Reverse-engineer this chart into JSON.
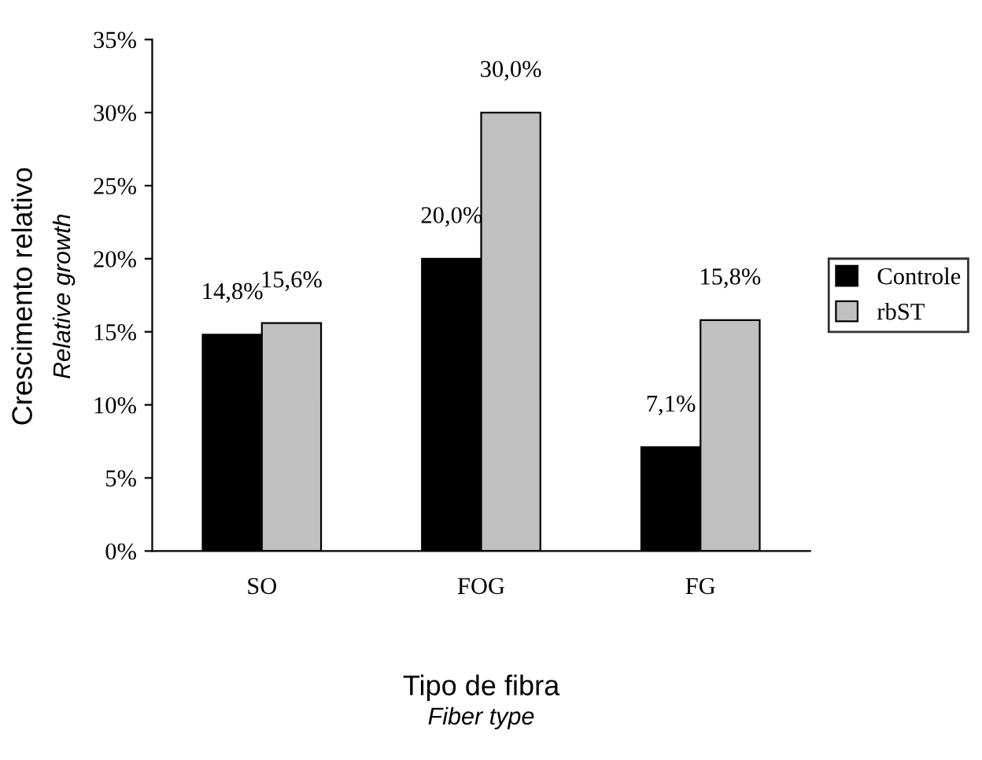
{
  "chart_data": {
    "type": "bar",
    "categories": [
      "SO",
      "FOG",
      "FG"
    ],
    "series": [
      {
        "name": "Controle",
        "color": "#000000",
        "values": [
          14.8,
          20.0,
          7.1
        ],
        "value_labels": [
          "14,8%",
          "20,0%",
          "7,1%"
        ]
      },
      {
        "name": "rbST",
        "color": "#c0c0c0",
        "values": [
          15.6,
          30.0,
          15.8
        ],
        "value_labels": [
          "15,6%",
          "30,0%",
          "15,8%"
        ]
      }
    ],
    "xlabel": "Tipo de fibra\nFiber type",
    "ylabel": "Crescimento relativo\nRelative growth",
    "ylim": [
      0,
      35
    ],
    "yticks": [
      {
        "value": 0,
        "label": "0%"
      },
      {
        "value": 5,
        "label": "5%"
      },
      {
        "value": 10,
        "label": "10%"
      },
      {
        "value": 15,
        "label": "15%"
      },
      {
        "value": 20,
        "label": "20%"
      },
      {
        "value": 25,
        "label": "25%"
      },
      {
        "value": 30,
        "label": "30%"
      },
      {
        "value": 35,
        "label": "35%"
      }
    ],
    "grid": false,
    "legend": "right"
  }
}
